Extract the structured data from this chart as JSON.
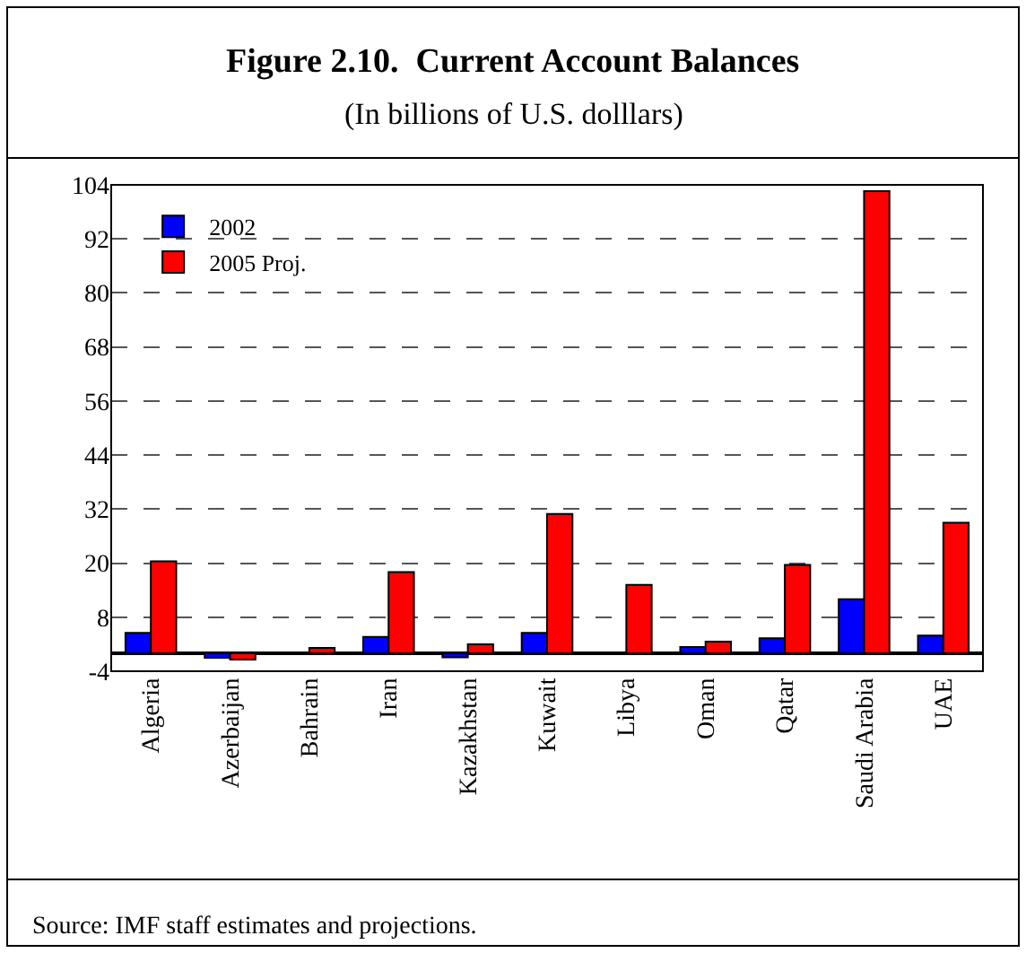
{
  "chart_data": {
    "type": "bar",
    "title": "Figure 2.10.  Current Account Balances",
    "subtitle": "(In billions of U.S. dolllars)",
    "categories": [
      "Algeria",
      "Azerbaijan",
      "Bahrain",
      "Iran",
      "Kazakhstan",
      "Kuwait",
      "Libya",
      "Oman",
      "Qatar",
      "Saudi Arabia",
      "UAE"
    ],
    "series": [
      {
        "name": "2002",
        "color": "#0000ff",
        "values": [
          4.5,
          -1.0,
          null,
          3.6,
          -0.9,
          4.5,
          null,
          1.4,
          3.3,
          12,
          3.9
        ]
      },
      {
        "name": "2005 Proj.",
        "color": "#ff0000",
        "values": [
          20.4,
          -1.4,
          1.2,
          18,
          2,
          30.9,
          15.2,
          2.6,
          19.6,
          102.6,
          29
        ]
      }
    ],
    "ylim": [
      -4,
      104
    ],
    "yticks": [
      -4,
      8,
      20,
      32,
      44,
      56,
      68,
      80,
      92,
      104
    ],
    "grid": "y",
    "legend": "top left",
    "annotations": [
      "Source: IMF staff estimates and projections."
    ]
  }
}
